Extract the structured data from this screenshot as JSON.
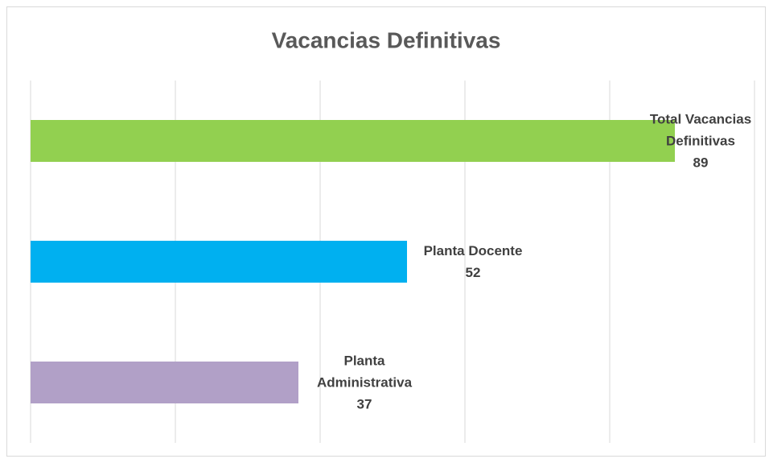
{
  "chart_data": {
    "type": "bar",
    "orientation": "horizontal",
    "title": "Vacancias Definitivas",
    "categories": [
      "Total Vacancias Definitivas",
      "Planta Docente",
      "Planta Administrativa"
    ],
    "values": [
      89,
      52,
      37
    ],
    "colors": [
      "#92d050",
      "#00b0f0",
      "#b1a0c7"
    ],
    "xlim": [
      0,
      100
    ],
    "xticks": [
      0,
      20,
      40,
      60,
      80,
      100
    ],
    "grid": true
  }
}
